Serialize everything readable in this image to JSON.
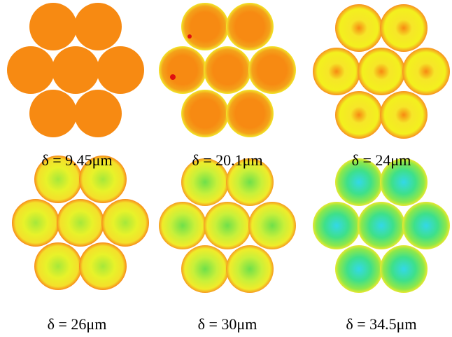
{
  "captions": [
    "δ = 9.45μm",
    "δ = 20.1μm",
    "δ = 24μm",
    "δ = 26μm",
    "δ = 30μm",
    "δ = 34.5μm"
  ]
}
